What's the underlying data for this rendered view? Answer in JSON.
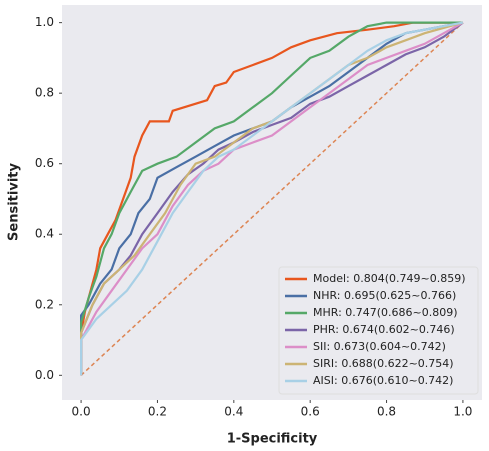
{
  "chart_data": {
    "type": "line",
    "x_label": "1-Specificity",
    "y_label": "Sensitivity",
    "xlim": [
      -0.05,
      1.05
    ],
    "ylim": [
      -0.07,
      1.05
    ],
    "xticks": [
      {
        "value": 0,
        "label": "0.0"
      },
      {
        "value": 0.2,
        "label": "0.2"
      },
      {
        "value": 0.4,
        "label": "0.4"
      },
      {
        "value": 0.6,
        "label": "0.6"
      },
      {
        "value": 0.8,
        "label": "0.8"
      },
      {
        "value": 1,
        "label": "1.0"
      }
    ],
    "yticks": [
      {
        "value": 0,
        "label": "0.0"
      },
      {
        "value": 0.2,
        "label": "0.2"
      },
      {
        "value": 0.4,
        "label": "0.4"
      },
      {
        "value": 0.6,
        "label": "0.6"
      },
      {
        "value": 0.8,
        "label": "0.8"
      },
      {
        "value": 1,
        "label": "1.0"
      }
    ],
    "background": "#eaeaef",
    "legend_position": "lower right",
    "diagonal": {
      "x": [
        0,
        1
      ],
      "y": [
        0,
        1
      ],
      "color": "#dd8452"
    },
    "series": [
      {
        "name": "Model: 0.804(0.749~0.859)",
        "color": "#e8561e",
        "x": [
          0,
          0,
          0.01,
          0.02,
          0.04,
          0.05,
          0.07,
          0.09,
          0.11,
          0.13,
          0.14,
          0.16,
          0.18,
          0.23,
          0.24,
          0.33,
          0.35,
          0.38,
          0.4,
          0.45,
          0.5,
          0.55,
          0.6,
          0.67,
          0.75,
          0.82,
          0.87,
          1
        ],
        "y": [
          0,
          0.12,
          0.18,
          0.22,
          0.3,
          0.36,
          0.4,
          0.44,
          0.5,
          0.56,
          0.62,
          0.68,
          0.72,
          0.72,
          0.75,
          0.78,
          0.82,
          0.83,
          0.86,
          0.88,
          0.9,
          0.93,
          0.95,
          0.97,
          0.98,
          0.99,
          1,
          1
        ]
      },
      {
        "name": "NHR: 0.695(0.625~0.766)",
        "color": "#4a6fa5",
        "x": [
          0,
          0,
          0.02,
          0.05,
          0.08,
          0.1,
          0.13,
          0.15,
          0.18,
          0.2,
          0.25,
          0.3,
          0.35,
          0.4,
          0.45,
          0.5,
          0.55,
          0.6,
          0.65,
          0.7,
          0.75,
          0.8,
          0.85,
          0.9,
          1
        ],
        "y": [
          0,
          0.17,
          0.2,
          0.26,
          0.3,
          0.36,
          0.4,
          0.46,
          0.5,
          0.56,
          0.59,
          0.62,
          0.65,
          0.68,
          0.7,
          0.72,
          0.76,
          0.79,
          0.82,
          0.86,
          0.9,
          0.94,
          0.97,
          0.98,
          1
        ]
      },
      {
        "name": "MHR: 0.747(0.686~0.809)",
        "color": "#55a868",
        "x": [
          0,
          0,
          0.02,
          0.04,
          0.06,
          0.08,
          0.1,
          0.13,
          0.16,
          0.2,
          0.25,
          0.3,
          0.35,
          0.4,
          0.45,
          0.5,
          0.55,
          0.6,
          0.65,
          0.7,
          0.75,
          0.8,
          1
        ],
        "y": [
          0,
          0.15,
          0.22,
          0.28,
          0.36,
          0.4,
          0.46,
          0.52,
          0.58,
          0.6,
          0.62,
          0.66,
          0.7,
          0.72,
          0.76,
          0.8,
          0.85,
          0.9,
          0.92,
          0.96,
          0.99,
          1,
          1
        ]
      },
      {
        "name": "PHR: 0.674(0.602~0.746)",
        "color": "#7b65a8",
        "x": [
          0,
          0,
          0.03,
          0.06,
          0.1,
          0.13,
          0.16,
          0.2,
          0.24,
          0.28,
          0.32,
          0.36,
          0.4,
          0.45,
          0.5,
          0.55,
          0.6,
          0.65,
          0.7,
          0.75,
          0.8,
          0.85,
          0.9,
          0.95,
          1
        ],
        "y": [
          0,
          0.12,
          0.2,
          0.26,
          0.3,
          0.34,
          0.4,
          0.46,
          0.52,
          0.57,
          0.6,
          0.64,
          0.66,
          0.69,
          0.71,
          0.73,
          0.77,
          0.79,
          0.82,
          0.85,
          0.88,
          0.91,
          0.93,
          0.96,
          1
        ]
      },
      {
        "name": "SII: 0.673(0.604~0.742)",
        "color": "#dc8ec8",
        "x": [
          0,
          0,
          0.04,
          0.08,
          0.12,
          0.16,
          0.2,
          0.24,
          0.28,
          0.32,
          0.36,
          0.4,
          0.45,
          0.5,
          0.55,
          0.6,
          0.65,
          0.7,
          0.75,
          0.8,
          0.85,
          0.9,
          0.95,
          1
        ],
        "y": [
          0,
          0.1,
          0.18,
          0.24,
          0.3,
          0.36,
          0.4,
          0.48,
          0.54,
          0.58,
          0.6,
          0.64,
          0.66,
          0.68,
          0.72,
          0.76,
          0.8,
          0.84,
          0.88,
          0.9,
          0.92,
          0.94,
          0.97,
          1
        ]
      },
      {
        "name": "SIRI: 0.688(0.622~0.754)",
        "color": "#ccb474",
        "x": [
          0,
          0,
          0.03,
          0.06,
          0.1,
          0.14,
          0.18,
          0.22,
          0.26,
          0.3,
          0.35,
          0.4,
          0.45,
          0.5,
          0.55,
          0.6,
          0.65,
          0.7,
          0.75,
          0.8,
          0.85,
          0.9,
          1
        ],
        "y": [
          0,
          0.12,
          0.2,
          0.26,
          0.3,
          0.34,
          0.4,
          0.46,
          0.54,
          0.6,
          0.62,
          0.66,
          0.7,
          0.72,
          0.76,
          0.8,
          0.84,
          0.88,
          0.9,
          0.93,
          0.95,
          0.97,
          1
        ]
      },
      {
        "name": "AISI: 0.676(0.610~0.742)",
        "color": "#a8d0e6",
        "x": [
          0,
          0,
          0.04,
          0.08,
          0.12,
          0.16,
          0.2,
          0.24,
          0.28,
          0.32,
          0.36,
          0.4,
          0.45,
          0.5,
          0.55,
          0.6,
          0.65,
          0.7,
          0.75,
          0.8,
          0.85,
          0.9,
          1
        ],
        "y": [
          0,
          0.1,
          0.16,
          0.2,
          0.24,
          0.3,
          0.38,
          0.46,
          0.52,
          0.58,
          0.62,
          0.64,
          0.68,
          0.72,
          0.76,
          0.8,
          0.84,
          0.88,
          0.92,
          0.95,
          0.97,
          0.98,
          1
        ]
      }
    ]
  }
}
